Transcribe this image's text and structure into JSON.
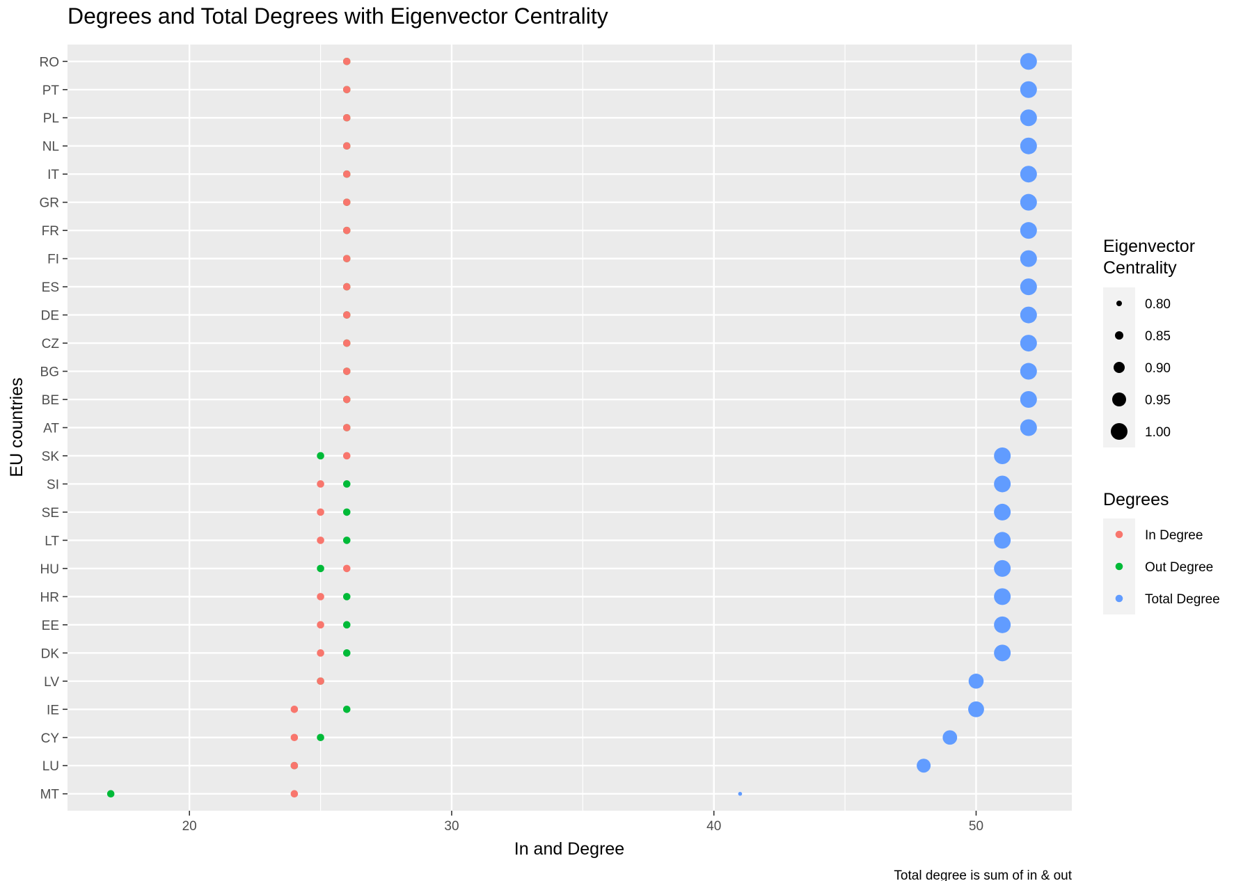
{
  "chart_data": {
    "type": "scatter",
    "title": "Degrees and Total Degrees with Eigenvector Centrality",
    "xlabel": "In and Degree",
    "ylabel": "EU countries",
    "caption": "Total degree is sum of in & out",
    "xlim": [
      15.35,
      53.65
    ],
    "x_ticks": [
      20,
      30,
      40,
      50
    ],
    "grid": true,
    "categories": [
      "MT",
      "LU",
      "CY",
      "IE",
      "LV",
      "DK",
      "EE",
      "HR",
      "HU",
      "LT",
      "SE",
      "SI",
      "SK",
      "AT",
      "BE",
      "BG",
      "CZ",
      "DE",
      "ES",
      "FI",
      "FR",
      "GR",
      "IT",
      "NL",
      "PL",
      "PT",
      "RO"
    ],
    "series": [
      {
        "name": "In Degree",
        "color": "#F8766D",
        "values": [
          24,
          24,
          24,
          24,
          25,
          25,
          25,
          25,
          26,
          25,
          25,
          25,
          26,
          26,
          26,
          26,
          26,
          26,
          26,
          26,
          26,
          26,
          26,
          26,
          26,
          26,
          26
        ]
      },
      {
        "name": "Out Degree",
        "color": "#00BA38",
        "values": [
          17,
          24,
          25,
          26,
          25,
          26,
          26,
          26,
          25,
          26,
          26,
          26,
          25,
          26,
          26,
          26,
          26,
          26,
          26,
          26,
          26,
          26,
          26,
          26,
          26,
          26,
          26
        ]
      },
      {
        "name": "Total Degree",
        "color": "#619CFF",
        "values": [
          41,
          48,
          49,
          50,
          50,
          51,
          51,
          51,
          51,
          51,
          51,
          51,
          51,
          52,
          52,
          52,
          52,
          52,
          52,
          52,
          52,
          52,
          52,
          52,
          52,
          52,
          52
        ]
      }
    ],
    "size_variable": "Eigenvector Centrality",
    "eigenvector_centrality": [
      0.77,
      0.95,
      0.96,
      0.985,
      0.97,
      1.0,
      1.0,
      1.0,
      1.0,
      1.0,
      1.0,
      1.0,
      1.0,
      1.0,
      1.0,
      1.0,
      1.0,
      1.0,
      1.0,
      1.0,
      1.0,
      1.0,
      1.0,
      1.0,
      1.0,
      1.0,
      1.0
    ],
    "size_legend": {
      "title": "Eigenvector\nCentrality",
      "values": [
        0.8,
        0.85,
        0.9,
        0.95,
        1.0
      ],
      "labels": [
        "0.80",
        "0.85",
        "0.90",
        "0.95",
        "1.00"
      ]
    },
    "color_legend": {
      "title": "Degrees",
      "labels": [
        "In Degree",
        "Out Degree",
        "Total Degree"
      ]
    },
    "legend_position": "right"
  }
}
